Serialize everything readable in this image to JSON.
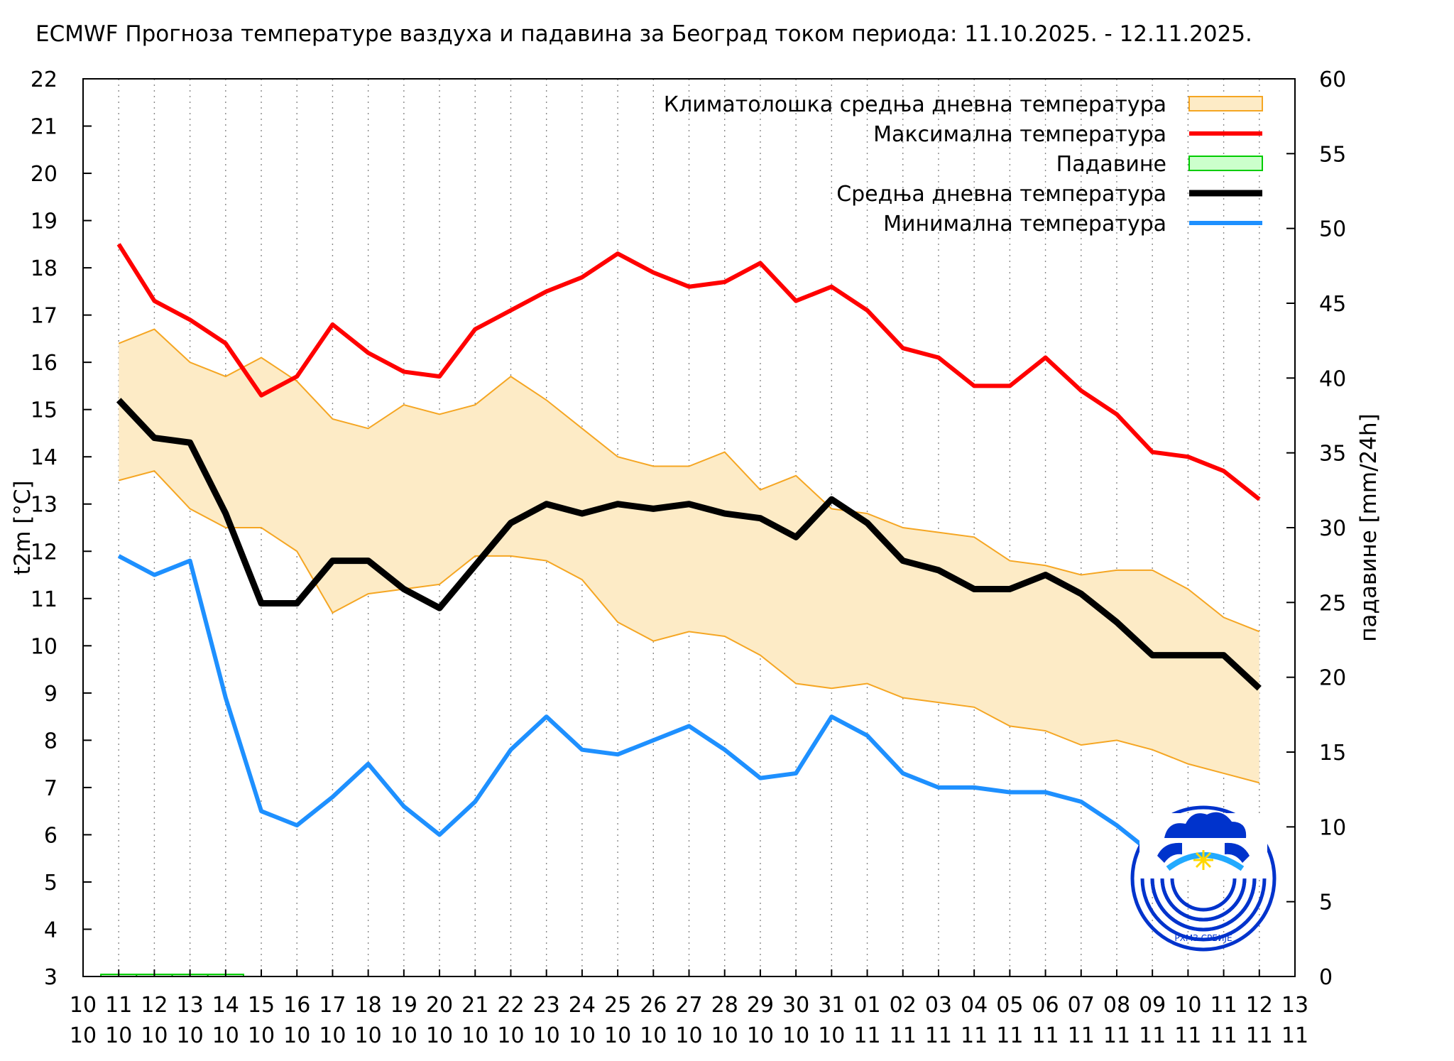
{
  "chart_data": {
    "type": "line",
    "title": "ECMWF Прогноза температуре ваздуха и падавина за Београд током периода: 11.10.2025. - 12.11.2025.",
    "ylabel": "t2m [°C]",
    "y2label": "падавине [mm/24h]",
    "ylim": [
      3,
      22
    ],
    "y2lim": [
      0,
      60
    ],
    "yticks": [
      "3",
      "4",
      "5",
      "6",
      "7",
      "8",
      "9",
      "10",
      "11",
      "12",
      "13",
      "14",
      "15",
      "16",
      "17",
      "18",
      "19",
      "20",
      "21",
      "22"
    ],
    "y2ticks": [
      "0",
      "5",
      "10",
      "15",
      "20",
      "25",
      "30",
      "35",
      "40",
      "45",
      "50",
      "55",
      "60"
    ],
    "grid": "vertical-dotted",
    "legend_position": "top-right",
    "x_days": [
      "10",
      "11",
      "12",
      "13",
      "14",
      "15",
      "16",
      "17",
      "18",
      "19",
      "20",
      "21",
      "22",
      "23",
      "24",
      "25",
      "26",
      "27",
      "28",
      "29",
      "30",
      "31",
      "01",
      "02",
      "03",
      "04",
      "05",
      "06",
      "07",
      "08",
      "09",
      "10",
      "11",
      "12",
      "13"
    ],
    "x_months": [
      "10",
      "10",
      "10",
      "10",
      "10",
      "10",
      "10",
      "10",
      "10",
      "10",
      "10",
      "10",
      "10",
      "10",
      "10",
      "10",
      "10",
      "10",
      "10",
      "10",
      "10",
      "10",
      "11",
      "11",
      "11",
      "11",
      "11",
      "11",
      "11",
      "11",
      "11",
      "11",
      "11",
      "11",
      "11"
    ],
    "legend": [
      {
        "label": "Климатолошка средња дневна температура",
        "color": "#fdebc6",
        "kind": "band"
      },
      {
        "label": "Максимална температура",
        "color": "#ff0000",
        "kind": "line"
      },
      {
        "label": "Падавине",
        "color": "#00cc00",
        "kind": "bar"
      },
      {
        "label": "Средња дневна температура",
        "color": "#000000",
        "kind": "line"
      },
      {
        "label": "Минимална температура",
        "color": "#1e90ff",
        "kind": "line"
      }
    ],
    "clim_upper": [
      16.4,
      16.7,
      16.0,
      15.7,
      16.1,
      15.6,
      14.8,
      14.6,
      15.1,
      14.9,
      15.1,
      15.7,
      15.2,
      14.6,
      14.0,
      13.8,
      13.8,
      14.1,
      13.3,
      13.6,
      12.9,
      12.8,
      12.5,
      12.4,
      12.3,
      11.8,
      11.7,
      11.5,
      11.6,
      11.6,
      11.2,
      10.6,
      10.3
    ],
    "clim_lower": [
      13.5,
      13.7,
      12.9,
      12.5,
      12.5,
      12.0,
      10.7,
      11.1,
      11.2,
      11.3,
      11.9,
      11.9,
      11.8,
      11.4,
      10.5,
      10.1,
      10.3,
      10.2,
      9.8,
      9.2,
      9.1,
      9.2,
      8.9,
      8.8,
      8.7,
      8.3,
      8.2,
      7.9,
      8.0,
      7.8,
      7.5,
      7.3,
      7.1
    ],
    "series": [
      {
        "name": "Максимална температура",
        "color": "#ff0000",
        "values": [
          18.5,
          17.3,
          16.9,
          16.4,
          15.3,
          15.7,
          16.8,
          16.2,
          15.8,
          15.7,
          16.7,
          17.1,
          17.5,
          17.8,
          18.3,
          17.9,
          17.6,
          17.7,
          18.1,
          17.3,
          17.6,
          17.1,
          16.3,
          16.1,
          15.5,
          15.5,
          16.1,
          15.4,
          14.9,
          14.1,
          14.0,
          13.7,
          13.1
        ]
      },
      {
        "name": "Средња дневна температура",
        "color": "#000000",
        "values": [
          15.2,
          14.4,
          14.3,
          12.8,
          10.9,
          10.9,
          11.8,
          11.8,
          11.2,
          10.8,
          11.7,
          12.6,
          13.0,
          12.8,
          13.0,
          12.9,
          13.0,
          12.8,
          12.7,
          12.3,
          13.1,
          12.6,
          11.8,
          11.6,
          11.2,
          11.2,
          11.5,
          11.1,
          10.5,
          9.8,
          9.8,
          9.8,
          9.1
        ]
      },
      {
        "name": "Минимална температура",
        "color": "#1e90ff",
        "values": [
          11.9,
          11.5,
          11.8,
          8.9,
          6.5,
          6.2,
          6.8,
          7.5,
          6.6,
          6.0,
          6.7,
          7.8,
          8.5,
          7.8,
          7.7,
          8.0,
          8.3,
          7.8,
          7.2,
          7.3,
          8.5,
          8.1,
          7.3,
          7.0,
          7.0,
          6.9,
          6.9,
          6.7,
          6.2,
          5.6,
          5.5,
          5.5,
          5.5
        ]
      }
    ],
    "precipitation": {
      "name": "Падавине",
      "color": "#00cc00",
      "values": [
        0.1,
        0.1,
        0.1,
        0.1,
        0,
        0,
        0,
        0,
        0,
        0,
        0,
        0,
        0,
        0,
        0,
        0,
        0,
        0,
        0,
        0,
        0,
        0,
        0,
        0,
        0,
        0,
        0,
        0,
        0,
        0,
        0,
        0,
        0
      ]
    }
  },
  "logo": {
    "name": "RHMZ Srbije emblem",
    "text": "РХМЗ СРБИЈЕ"
  }
}
